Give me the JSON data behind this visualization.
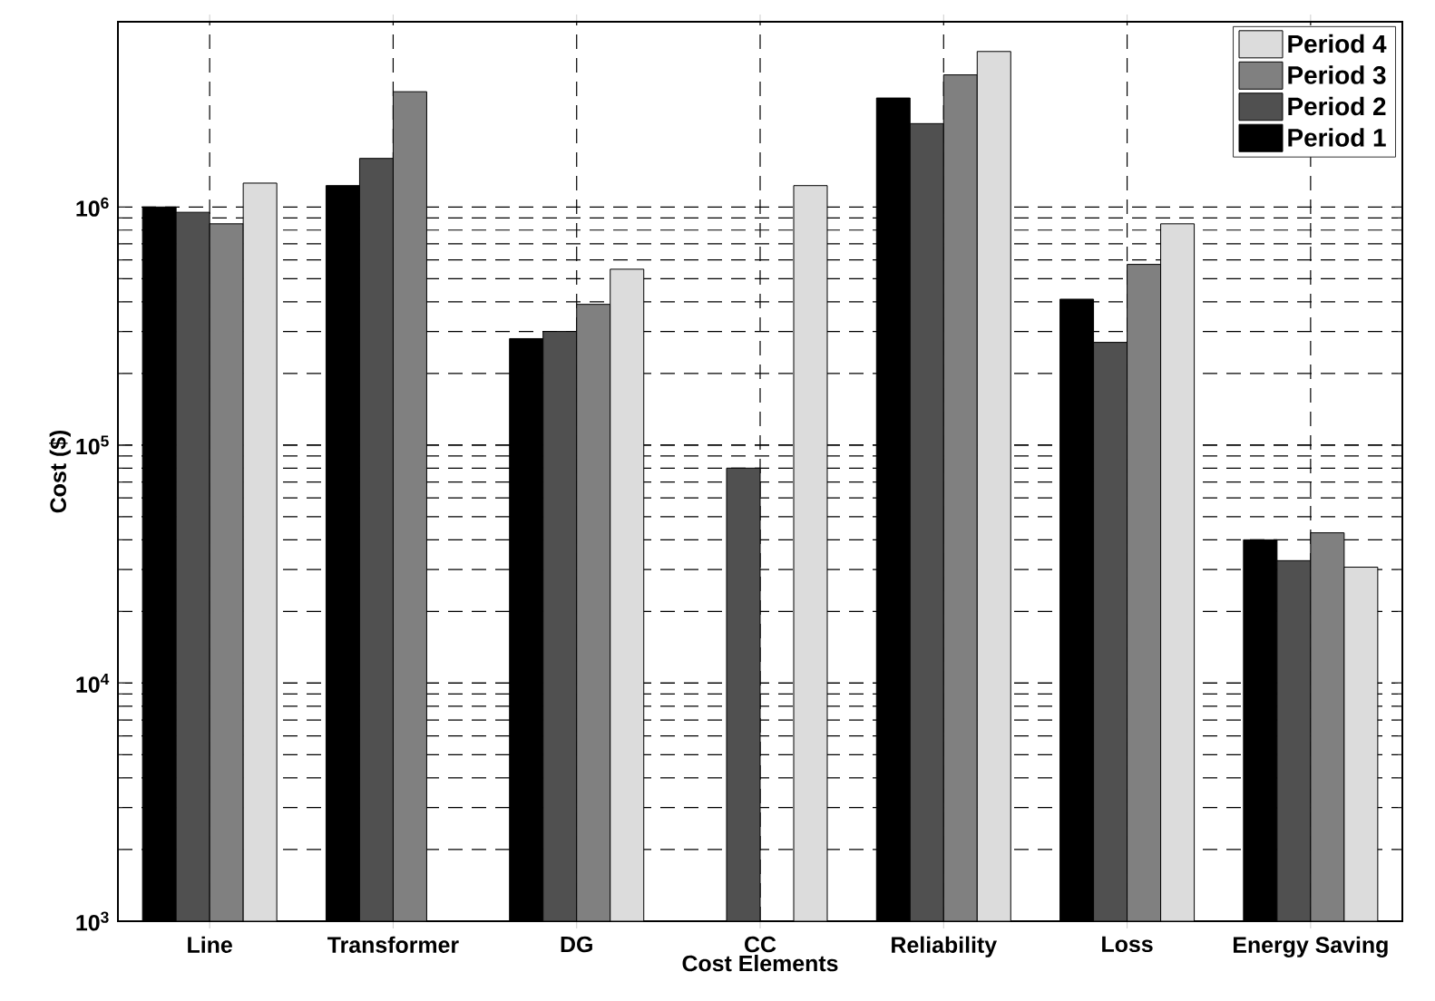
{
  "chart_data": {
    "type": "bar",
    "xlabel": "Cost Elements",
    "ylabel": "Cost ($)",
    "categories": [
      "Line",
      "Transformer",
      "DG",
      "CC",
      "Reliability",
      "Loss",
      "Energy Saving"
    ],
    "series": [
      {
        "name": "Period 1",
        "color": "#000000",
        "values": [
          1000000,
          1230000,
          280000,
          null,
          2870000,
          410000,
          40000
        ]
      },
      {
        "name": "Period 2",
        "color": "#505050",
        "values": [
          950000,
          1600000,
          300000,
          80000,
          2240000,
          270000,
          32700
        ]
      },
      {
        "name": "Period 3",
        "color": "#808080",
        "values": [
          850000,
          3050000,
          390000,
          null,
          3590000,
          574000,
          42800
        ]
      },
      {
        "name": "Period 4",
        "color": "#dcdcdc",
        "values": [
          1260000,
          null,
          548000,
          1230000,
          4500000,
          850000,
          30700
        ]
      }
    ],
    "log": true,
    "ylim": [
      1000,
      6000000
    ],
    "yticks": [
      {
        "value": 1000,
        "label": "10$^{3}$"
      },
      {
        "value": 10000,
        "label": "10$^{4}$"
      },
      {
        "value": 100000,
        "label": "10$^{5}$"
      },
      {
        "value": 1000000,
        "label": "10$^{6}$"
      }
    ],
    "grid": true,
    "legend": "top right"
  }
}
